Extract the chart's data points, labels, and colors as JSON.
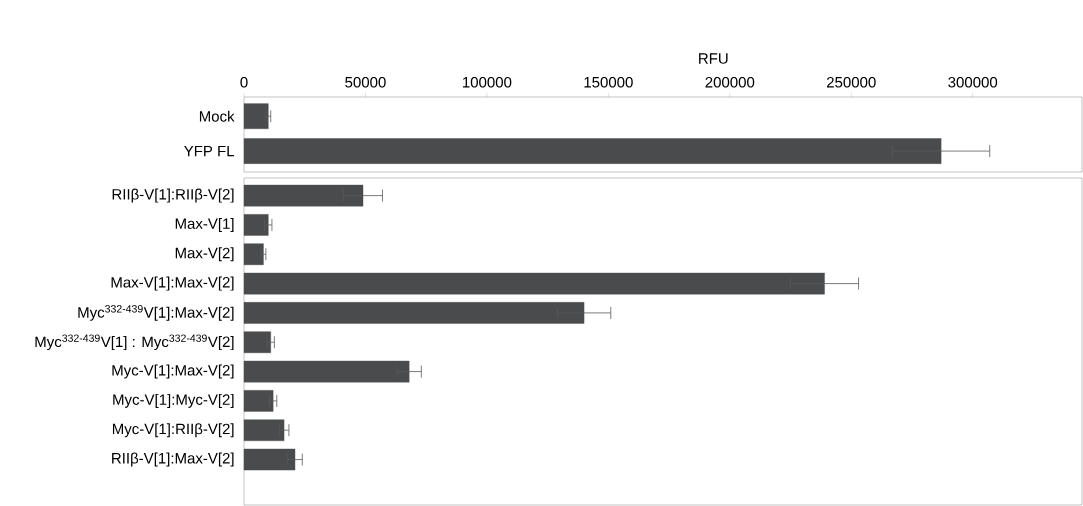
{
  "chart_data": [
    {
      "type": "bar",
      "orientation": "horizontal",
      "xlabel": "RFU",
      "categories": [
        "Mock",
        "YFP FL"
      ],
      "values": [
        10000,
        287000
      ],
      "errors": [
        1000,
        20000
      ],
      "color": "#4a4b4d",
      "xlim": [
        0,
        345000
      ],
      "xticks": [
        0,
        50000,
        100000,
        150000,
        200000,
        250000,
        300000
      ]
    },
    {
      "type": "bar",
      "orientation": "horizontal",
      "tick_labels": "y",
      "categories": [
        "RIIβ-V[1]:RIIβ-V[2]",
        "Max-V[1]",
        "Max-V[2]",
        "Max-V[1]:Max-V[2]",
        "Myc$^{332-439}$V[1]:Max-V[2]",
        "Myc$^{332-439}$V[1] : Myc$^{332-439}$V[2]",
        "Myc-V[1]:Max-V[2]",
        "Myc-V[1]:Myc-V[2]",
        "Myc-V[1]:RIIβ-V[2]",
        "RIIβ-V[1]:Max-V[2]"
      ],
      "values": [
        49000,
        10000,
        8000,
        239000,
        140000,
        11000,
        68000,
        12000,
        16500,
        21000
      ],
      "errors": [
        8000,
        1500,
        1000,
        14000,
        11000,
        1500,
        5000,
        1500,
        2000,
        3000
      ],
      "color": "#4a4b4d",
      "xlim": [
        0,
        345000
      ]
    }
  ]
}
